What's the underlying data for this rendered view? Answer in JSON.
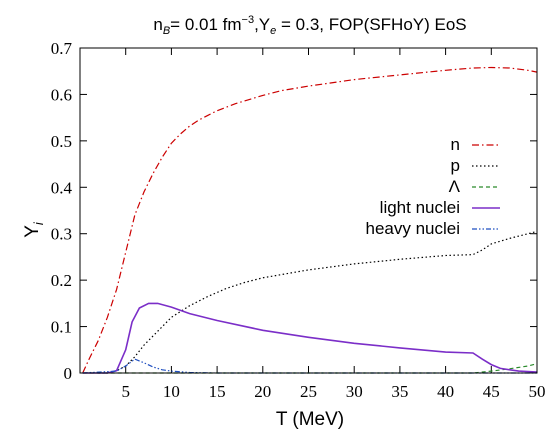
{
  "chart_data": {
    "type": "line",
    "title": "n_B= 0.01 fm^-3,Y_e = 0.3, FOP(SFHoY) EoS",
    "title_parts": {
      "n": "n",
      "B_sub": "B",
      "mid1": "= 0.01 fm",
      "sup": "−3",
      "mid2": ",Y",
      "e_sub": "e",
      "mid3": " = 0.3, FOP(SFHoY) EoS"
    },
    "xlabel": "T (MeV)",
    "ylabel": "Y",
    "ylabel_sub": "i",
    "xlim": [
      0,
      50
    ],
    "ylim": [
      0,
      0.7
    ],
    "xticks": [
      5,
      10,
      15,
      20,
      25,
      30,
      35,
      40,
      45,
      50
    ],
    "yticks": [
      0,
      0.1,
      0.2,
      0.3,
      0.4,
      0.5,
      0.6,
      0.7
    ],
    "xtick_labels": [
      "5",
      "10",
      "15",
      "20",
      "25",
      "30",
      "35",
      "40",
      "45",
      "50"
    ],
    "ytick_labels": [
      "0",
      "0.1",
      "0.2",
      "0.3",
      "0.4",
      "0.5",
      "0.6",
      "0.7"
    ],
    "grid": false,
    "legend_position": "right-middle",
    "series": [
      {
        "name": "n",
        "color": "#cc0000",
        "dash": "7,3,1.5,3",
        "points": [
          [
            0.3,
            0.0
          ],
          [
            1,
            0.03
          ],
          [
            2,
            0.07
          ],
          [
            3,
            0.12
          ],
          [
            4,
            0.18
          ],
          [
            5,
            0.26
          ],
          [
            6,
            0.34
          ],
          [
            7,
            0.39
          ],
          [
            8,
            0.43
          ],
          [
            9,
            0.465
          ],
          [
            10,
            0.495
          ],
          [
            11,
            0.515
          ],
          [
            12,
            0.532
          ],
          [
            13,
            0.545
          ],
          [
            14,
            0.555
          ],
          [
            15,
            0.565
          ],
          [
            17,
            0.58
          ],
          [
            20,
            0.598
          ],
          [
            22,
            0.608
          ],
          [
            25,
            0.618
          ],
          [
            30,
            0.632
          ],
          [
            35,
            0.642
          ],
          [
            40,
            0.652
          ],
          [
            43,
            0.657
          ],
          [
            45,
            0.658
          ],
          [
            47,
            0.657
          ],
          [
            49,
            0.652
          ],
          [
            50,
            0.648
          ]
        ]
      },
      {
        "name": "p",
        "color": "#000000",
        "dash": "1.5,2.5",
        "points": [
          [
            2,
            0.0
          ],
          [
            3,
            0.0
          ],
          [
            4,
            0.005
          ],
          [
            5,
            0.015
          ],
          [
            6,
            0.035
          ],
          [
            7,
            0.06
          ],
          [
            8,
            0.08
          ],
          [
            9,
            0.1
          ],
          [
            10,
            0.12
          ],
          [
            12,
            0.145
          ],
          [
            14,
            0.165
          ],
          [
            16,
            0.182
          ],
          [
            18,
            0.195
          ],
          [
            20,
            0.205
          ],
          [
            25,
            0.222
          ],
          [
            30,
            0.235
          ],
          [
            35,
            0.245
          ],
          [
            40,
            0.253
          ],
          [
            43,
            0.255
          ],
          [
            44,
            0.265
          ],
          [
            45,
            0.278
          ],
          [
            47,
            0.29
          ],
          [
            50,
            0.305
          ]
        ]
      },
      {
        "name": "Λ",
        "color": "#2a8a2a",
        "dash": "4,3",
        "points": [
          [
            0.3,
            0.0
          ],
          [
            40,
            0.0
          ],
          [
            43,
            0.0
          ],
          [
            45,
            0.004
          ],
          [
            47,
            0.009
          ],
          [
            49,
            0.015
          ],
          [
            50,
            0.02
          ]
        ]
      },
      {
        "name": "light nuclei",
        "color": "#7b2ec8",
        "dash": "",
        "points": [
          [
            0.3,
            0.0
          ],
          [
            3,
            0.0
          ],
          [
            4,
            0.005
          ],
          [
            5,
            0.05
          ],
          [
            5.7,
            0.11
          ],
          [
            6.5,
            0.14
          ],
          [
            7.5,
            0.15
          ],
          [
            8.5,
            0.15
          ],
          [
            10,
            0.142
          ],
          [
            12,
            0.128
          ],
          [
            15,
            0.113
          ],
          [
            20,
            0.092
          ],
          [
            25,
            0.077
          ],
          [
            30,
            0.064
          ],
          [
            35,
            0.054
          ],
          [
            40,
            0.045
          ],
          [
            43,
            0.043
          ],
          [
            44,
            0.03
          ],
          [
            45,
            0.018
          ],
          [
            46,
            0.01
          ],
          [
            48,
            0.004
          ],
          [
            50,
            0.002
          ]
        ]
      },
      {
        "name": "heavy nuclei",
        "color": "#1f4fc0",
        "dash": "5,2,1.5,2,1.5,2",
        "points": [
          [
            0.3,
            0.0
          ],
          [
            4,
            0.004
          ],
          [
            5,
            0.015
          ],
          [
            6,
            0.03
          ],
          [
            7,
            0.022
          ],
          [
            8,
            0.013
          ],
          [
            9,
            0.007
          ],
          [
            10,
            0.004
          ],
          [
            12,
            0.001
          ],
          [
            15,
            0.0
          ],
          [
            50,
            0.0
          ]
        ]
      }
    ]
  }
}
